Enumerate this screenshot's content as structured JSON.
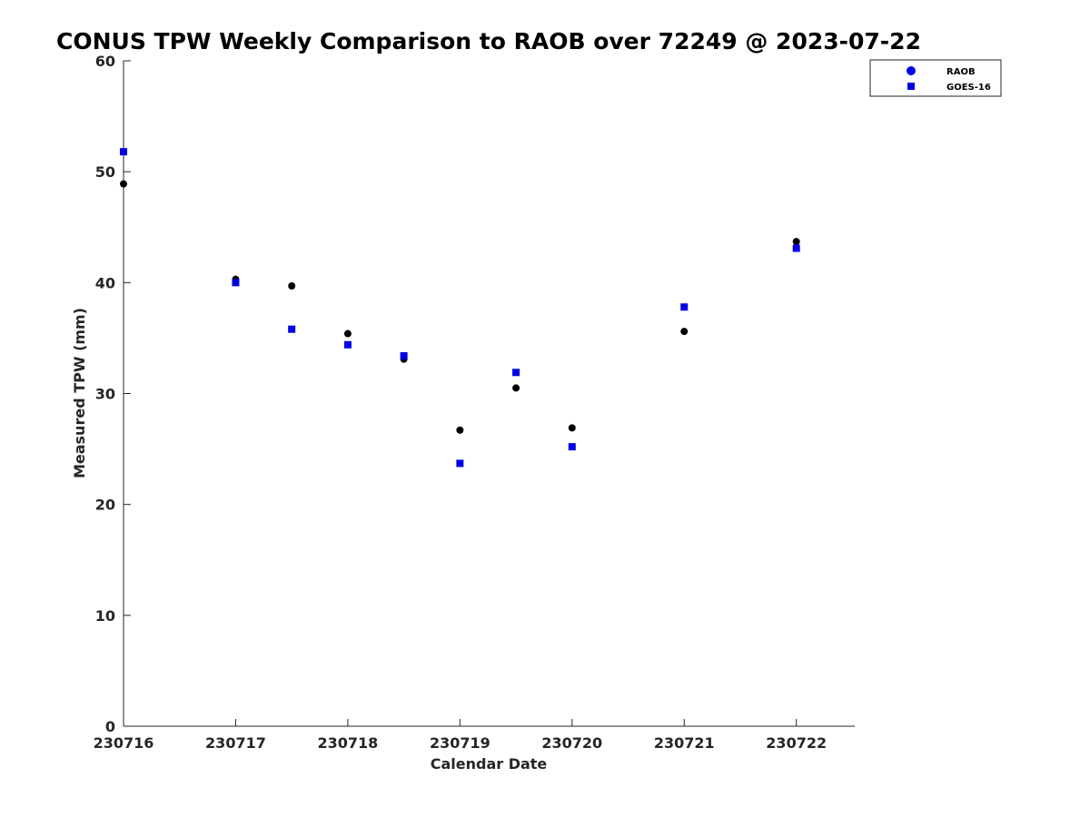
{
  "chart_data": {
    "type": "scatter",
    "title": "CONUS TPW Weekly Comparison to RAOB over 72249 @ 2023-07-22",
    "xlabel": "Calendar Date",
    "ylabel": "Measured TPW (mm)",
    "x_ticks": [
      "230716",
      "230717",
      "230718",
      "230719",
      "230720",
      "230721",
      "230722"
    ],
    "y_ticks": [
      "0",
      "10",
      "20",
      "30",
      "40",
      "50",
      "60"
    ],
    "xlim": [
      "2023-07-16 00:00",
      "2023-07-22 12:30"
    ],
    "ylim": [
      0,
      60
    ],
    "grid": false,
    "legend_position": "top-right",
    "series": [
      {
        "name": "RAOB",
        "marker": "circle",
        "color": "#000000",
        "points": [
          {
            "x": "2023-07-16 00:00",
            "y": 48.9
          },
          {
            "x": "2023-07-17 00:00",
            "y": 40.3
          },
          {
            "x": "2023-07-17 12:00",
            "y": 39.7
          },
          {
            "x": "2023-07-18 00:00",
            "y": 35.4
          },
          {
            "x": "2023-07-18 12:00",
            "y": 33.1
          },
          {
            "x": "2023-07-19 00:00",
            "y": 26.7
          },
          {
            "x": "2023-07-19 12:00",
            "y": 30.5
          },
          {
            "x": "2023-07-20 00:00",
            "y": 26.9
          },
          {
            "x": "2023-07-21 00:00",
            "y": 35.6
          },
          {
            "x": "2023-07-22 00:00",
            "y": 43.7
          }
        ]
      },
      {
        "name": "GOES-16",
        "marker": "square",
        "color": "#0000e6",
        "points": [
          {
            "x": "2023-07-16 00:00",
            "y": 51.8
          },
          {
            "x": "2023-07-17 00:00",
            "y": 40.0
          },
          {
            "x": "2023-07-17 12:00",
            "y": 35.8
          },
          {
            "x": "2023-07-18 00:00",
            "y": 34.4
          },
          {
            "x": "2023-07-18 12:00",
            "y": 33.4
          },
          {
            "x": "2023-07-19 00:00",
            "y": 23.7
          },
          {
            "x": "2023-07-19 12:00",
            "y": 31.9
          },
          {
            "x": "2023-07-20 00:00",
            "y": 25.2
          },
          {
            "x": "2023-07-21 00:00",
            "y": 37.8
          },
          {
            "x": "2023-07-22 00:00",
            "y": 43.1
          }
        ]
      }
    ]
  }
}
